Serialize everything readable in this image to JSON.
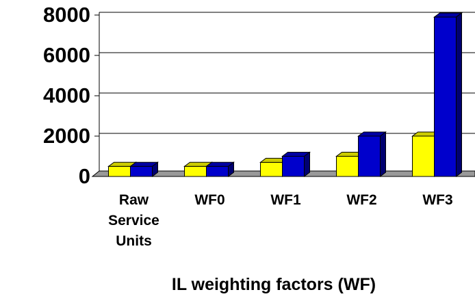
{
  "chart_data": {
    "type": "bar3d",
    "x_label": "IL weighting factors (WF)",
    "categories": [
      "Raw Service Units",
      "WF0",
      "WF1",
      "WF2",
      "WF3"
    ],
    "series": [
      {
        "color": "#ffff00",
        "values": [
          500,
          500,
          700,
          1000,
          2000
        ]
      },
      {
        "color": "#0000cc",
        "values": [
          500,
          500,
          1000,
          2000,
          7900
        ]
      }
    ],
    "ylim": [
      0,
      8000
    ],
    "yticks": [
      0,
      2000,
      4000,
      6000,
      8000
    ],
    "grid": true
  }
}
